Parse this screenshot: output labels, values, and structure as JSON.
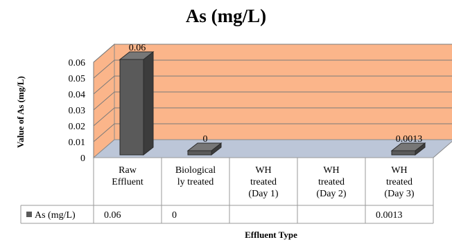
{
  "chart_data": {
    "type": "bar",
    "title": "As (mg/L)",
    "xlabel": "Effluent Type",
    "ylabel": "Value of As (mg/L)",
    "ylim": [
      0,
      0.06
    ],
    "yticks": [
      "0",
      "0.01",
      "0.02",
      "0.03",
      "0.04",
      "0.05",
      "0.06"
    ],
    "categories": [
      [
        "Raw",
        "Effluent"
      ],
      [
        "Biological",
        "ly treated"
      ],
      [
        "WH",
        "treated",
        "(Day 1)"
      ],
      [
        "WH",
        "treated",
        "(Day 2)"
      ],
      [
        "WH",
        "treated",
        "(Day 3)"
      ]
    ],
    "series": [
      {
        "name": "As (mg/L)",
        "values": [
          0.06,
          0,
          null,
          null,
          0.0013
        ],
        "data_labels": [
          "0.06",
          "0",
          "",
          "",
          "0.0013"
        ],
        "table_values": [
          "0.06",
          "0",
          "",
          "",
          "0.0013"
        ],
        "color": "#5a5a5a"
      }
    ],
    "back_wall_color": "#fbb58a",
    "floor_color": "#bcc6d8",
    "grid": true,
    "legend": "data-table"
  }
}
